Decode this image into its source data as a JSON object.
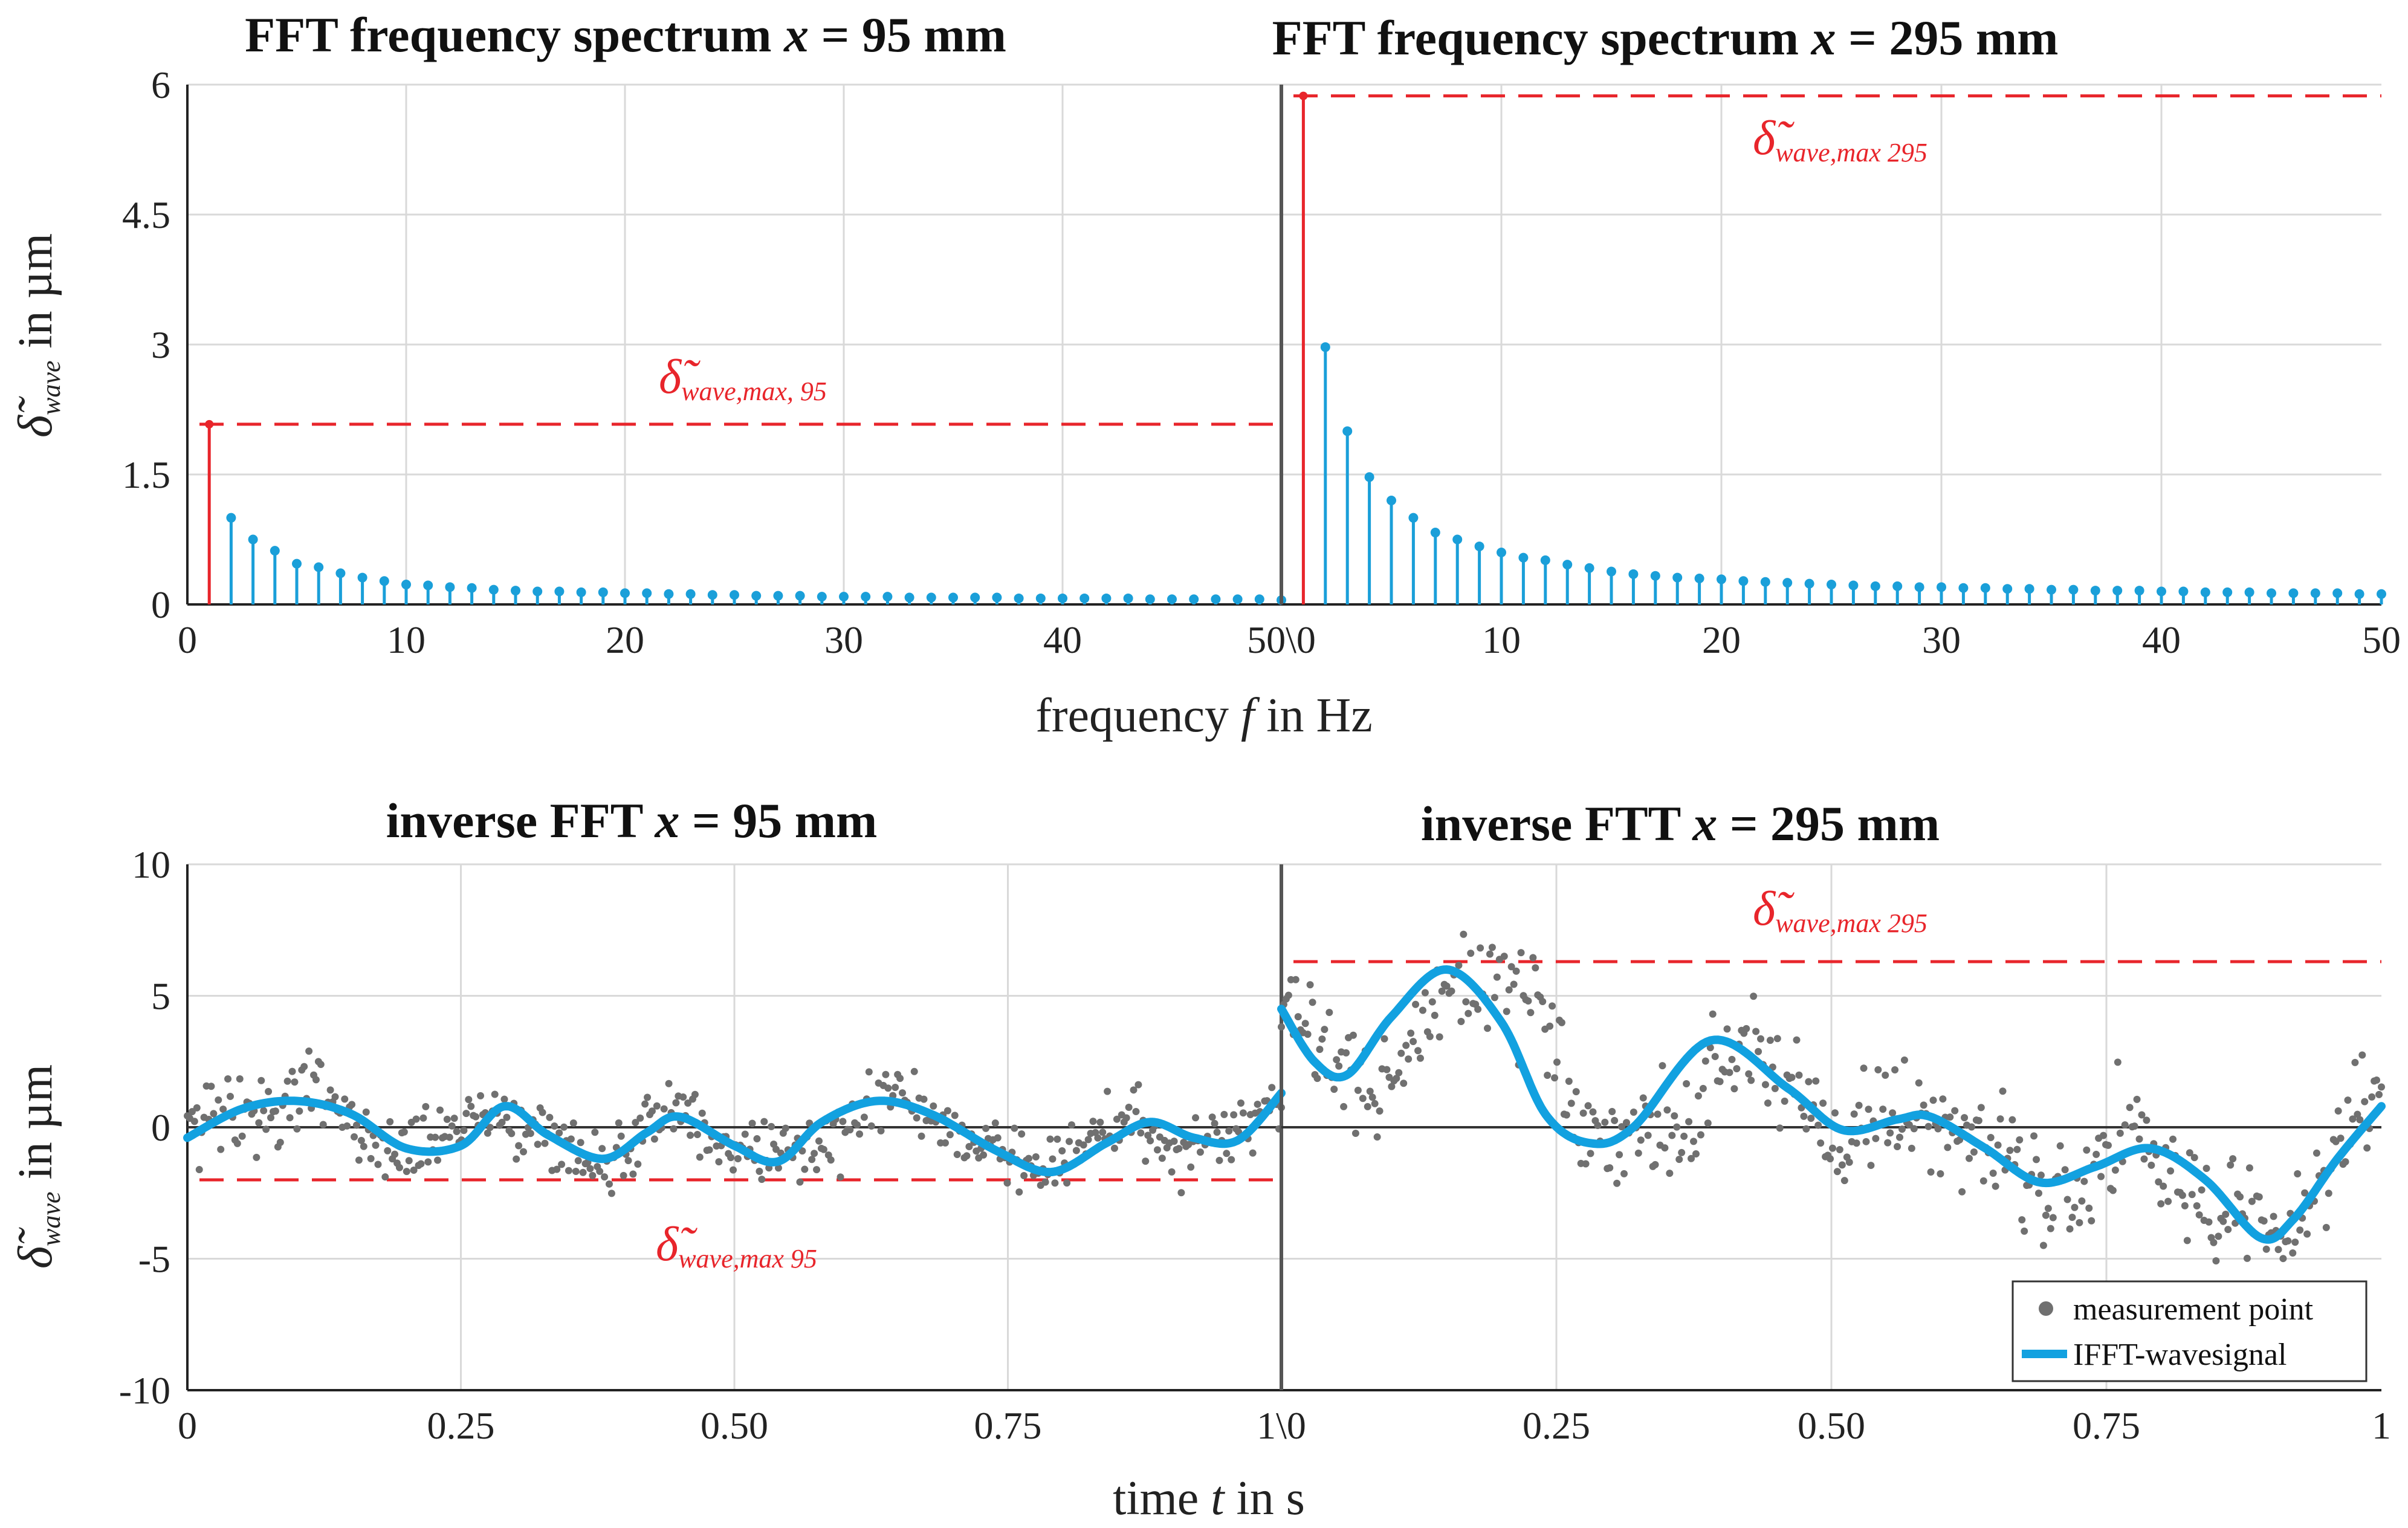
{
  "chart_data": [
    {
      "id": "fft95",
      "type": "stem",
      "title": "FFT frequency spectrum x = 95 mm",
      "title_main": "FFT frequency spectrum ",
      "title_var": "x",
      "title_rest": " = 95 mm",
      "xlim": [
        0,
        50
      ],
      "ylim": [
        0,
        6
      ],
      "xticks": [
        "0",
        "10",
        "20",
        "30",
        "40",
        "50\\0"
      ],
      "yticks": [
        "0",
        "1.5",
        "3",
        "4.5",
        "6"
      ],
      "ylabel": "δ̃wave in µm",
      "max_line": {
        "value": 2.08,
        "label": "δ̃",
        "label_sub": "wave,max, 95"
      },
      "red_stem": {
        "f": 1,
        "value": 2.08
      },
      "stems": {
        "f": [
          2,
          3,
          4,
          5,
          6,
          7,
          8,
          9,
          10,
          11,
          12,
          13,
          14,
          15,
          16,
          17,
          18,
          19,
          20,
          21,
          22,
          23,
          24,
          25,
          26,
          27,
          28,
          29,
          30,
          31,
          32,
          33,
          34,
          35,
          36,
          37,
          38,
          39,
          40,
          41,
          42,
          43,
          44,
          45,
          46,
          47,
          48,
          49,
          50
        ],
        "values": [
          1.0,
          0.75,
          0.62,
          0.47,
          0.43,
          0.36,
          0.31,
          0.27,
          0.23,
          0.22,
          0.2,
          0.19,
          0.17,
          0.16,
          0.15,
          0.15,
          0.14,
          0.14,
          0.13,
          0.13,
          0.12,
          0.12,
          0.11,
          0.11,
          0.1,
          0.1,
          0.1,
          0.09,
          0.09,
          0.09,
          0.09,
          0.08,
          0.08,
          0.08,
          0.08,
          0.08,
          0.07,
          0.07,
          0.07,
          0.07,
          0.07,
          0.07,
          0.06,
          0.06,
          0.06,
          0.06,
          0.06,
          0.06,
          0.05
        ]
      }
    },
    {
      "id": "fft295",
      "type": "stem",
      "title": "FFT frequency spectrum x = 295 mm",
      "title_main": "FFT frequency spectrum  ",
      "title_var": "x",
      "title_rest": " = 295 mm",
      "xlim": [
        0,
        50
      ],
      "ylim": [
        0,
        6
      ],
      "xticks": [
        "10",
        "20",
        "30",
        "40",
        "50"
      ],
      "max_line": {
        "value": 5.87,
        "label": "δ̃",
        "label_sub": "wave,max 295"
      },
      "red_stem": {
        "f": 1,
        "value": 5.87
      },
      "stems": {
        "f": [
          2,
          3,
          4,
          5,
          6,
          7,
          8,
          9,
          10,
          11,
          12,
          13,
          14,
          15,
          16,
          17,
          18,
          19,
          20,
          21,
          22,
          23,
          24,
          25,
          26,
          27,
          28,
          29,
          30,
          31,
          32,
          33,
          34,
          35,
          36,
          37,
          38,
          39,
          40,
          41,
          42,
          43,
          44,
          45,
          46,
          47,
          48,
          49,
          50
        ],
        "values": [
          2.97,
          2.0,
          1.47,
          1.2,
          1.0,
          0.83,
          0.75,
          0.67,
          0.6,
          0.54,
          0.51,
          0.46,
          0.42,
          0.38,
          0.35,
          0.33,
          0.31,
          0.3,
          0.29,
          0.27,
          0.26,
          0.25,
          0.24,
          0.23,
          0.22,
          0.21,
          0.21,
          0.2,
          0.2,
          0.19,
          0.19,
          0.18,
          0.18,
          0.17,
          0.17,
          0.16,
          0.16,
          0.16,
          0.15,
          0.15,
          0.14,
          0.14,
          0.14,
          0.13,
          0.13,
          0.13,
          0.13,
          0.12,
          0.12
        ]
      },
      "xlabel": "frequency f in Hz",
      "xlabel_pre": "frequency ",
      "xlabel_var": "f",
      "xlabel_post": " in Hz"
    },
    {
      "id": "ifft95",
      "type": "scatter+line",
      "title": "inverse FFT x = 95 mm",
      "title_main": "inverse FFT ",
      "title_var": "x",
      "title_rest": " = 95 mm",
      "xlim": [
        0,
        1
      ],
      "ylim": [
        -10,
        10
      ],
      "xticks": [
        "0",
        "0.25",
        "0.50",
        "0.75",
        "1\\0"
      ],
      "yticks": [
        "-10",
        "-5",
        "0",
        "5",
        "10"
      ],
      "ylabel": "δ̃wave in µm",
      "max_line": {
        "value": -2.0,
        "label": "δ̃",
        "label_sub": "wave,max 95"
      },
      "wave": {
        "t": [
          0,
          0.05,
          0.1,
          0.15,
          0.2,
          0.25,
          0.29,
          0.33,
          0.38,
          0.42,
          0.45,
          0.5,
          0.54,
          0.58,
          0.63,
          0.68,
          0.74,
          0.79,
          0.84,
          0.88,
          0.92,
          0.96,
          1.0
        ],
        "values": [
          -0.4,
          0.7,
          1.0,
          0.5,
          -0.8,
          -0.7,
          0.8,
          -0.3,
          -1.2,
          -0.2,
          0.4,
          -0.7,
          -1.3,
          0.2,
          1.0,
          0.5,
          -0.9,
          -1.7,
          -0.6,
          0.2,
          -0.4,
          -0.5,
          1.3
        ]
      },
      "scatter_seed": 95
    },
    {
      "id": "ifft295",
      "type": "scatter+line",
      "title": "inverse FTT x = 295 mm",
      "title_main": "inverse FTT ",
      "title_var": "x",
      "title_rest": " = 295 mm",
      "xlim": [
        0,
        1
      ],
      "ylim": [
        -10,
        10
      ],
      "xticks": [
        "0.25",
        "0.50",
        "0.75",
        "1"
      ],
      "max_line": {
        "value": 6.3,
        "label": "δ̃",
        "label_sub": "wave,max 295"
      },
      "wave": {
        "t": [
          0,
          0.03,
          0.06,
          0.1,
          0.15,
          0.2,
          0.24,
          0.28,
          0.32,
          0.39,
          0.46,
          0.51,
          0.56,
          0.59,
          0.64,
          0.69,
          0.74,
          0.79,
          0.84,
          0.89,
          0.92,
          0.96,
          1.0
        ],
        "values": [
          4.5,
          2.5,
          2.0,
          4.2,
          6.0,
          4.0,
          0.5,
          -0.6,
          0.0,
          3.3,
          1.5,
          -0.1,
          0.3,
          0.4,
          -0.8,
          -2.1,
          -1.5,
          -0.8,
          -2.0,
          -4.2,
          -3.5,
          -1.2,
          0.8
        ]
      },
      "scatter_seed": 295,
      "xlabel": "time t in s",
      "xlabel_pre": "time ",
      "xlabel_var": "t",
      "xlabel_post": " in s",
      "legend": {
        "position": "bottom-right",
        "items": [
          "measurement point",
          "IFFT-wavesignal"
        ]
      }
    }
  ],
  "colors": {
    "stem": "#1a9fd9",
    "wave": "#12a1e0",
    "red": "#e8252b",
    "dots": "#707070",
    "grid": "#d9d9d9",
    "axis": "#222222"
  }
}
